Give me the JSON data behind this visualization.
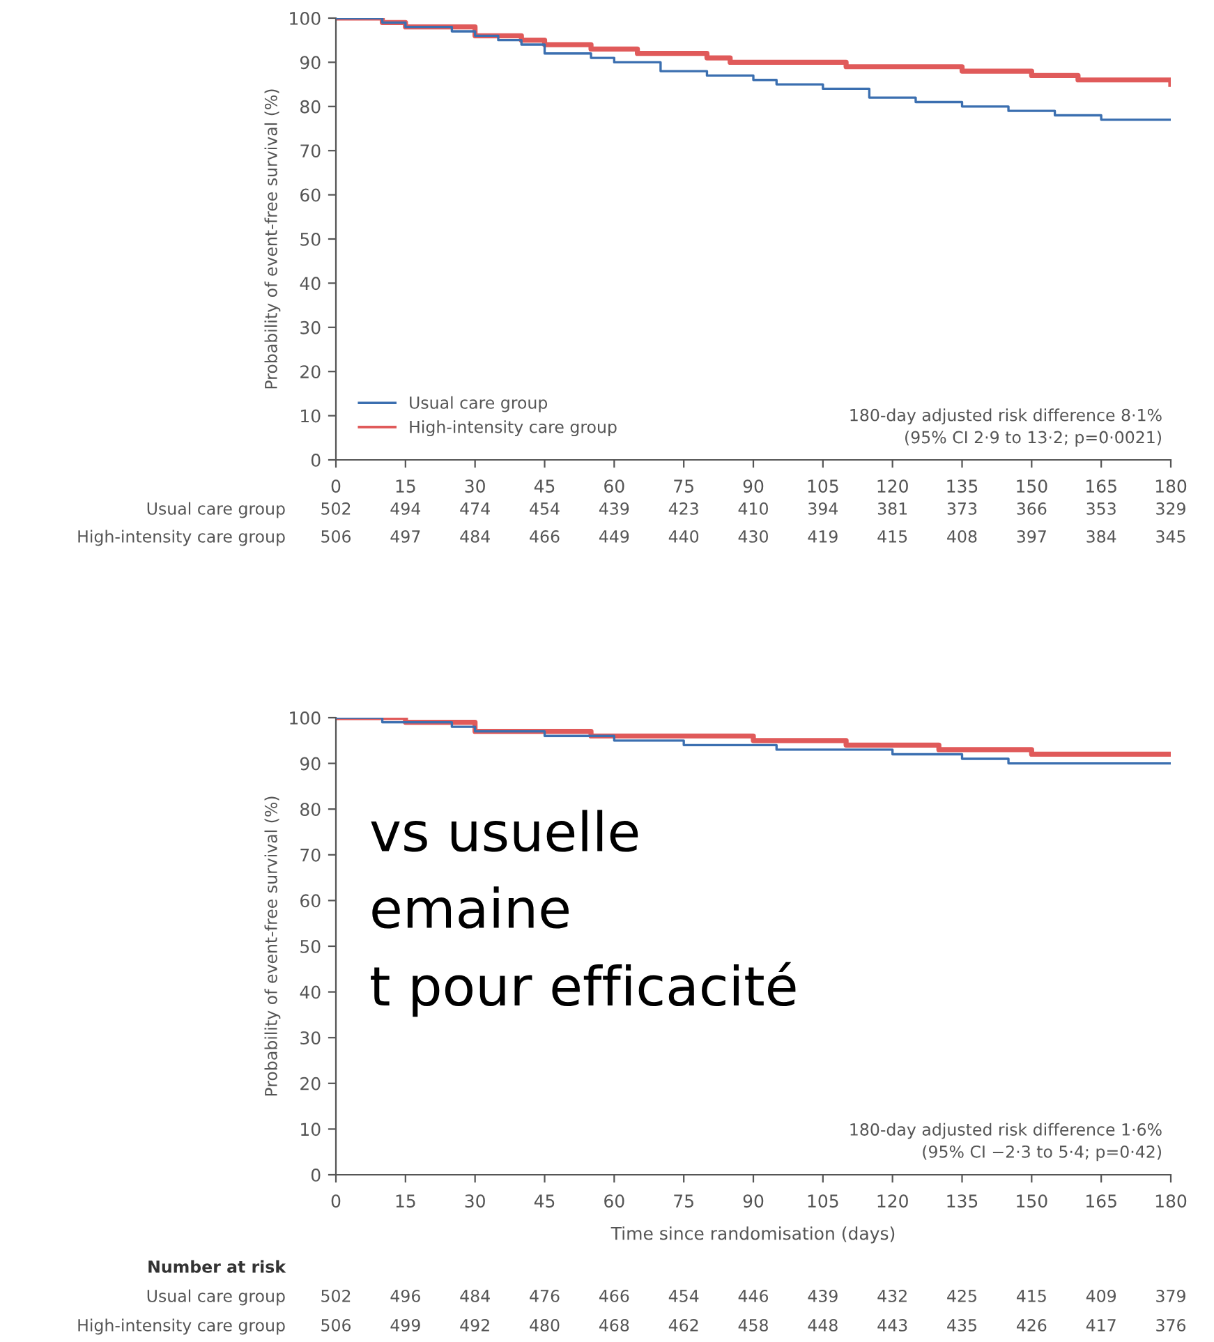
{
  "chart_data": [
    {
      "type": "step",
      "ylabel": "Probability of event-free survival (%)",
      "xlim": [
        0,
        180
      ],
      "xticks": [
        0,
        15,
        30,
        45,
        60,
        75,
        90,
        105,
        120,
        135,
        150,
        165,
        180
      ],
      "ylim": [
        0,
        100
      ],
      "yticks": [
        0,
        10,
        20,
        30,
        40,
        50,
        60,
        70,
        80,
        90,
        100
      ],
      "legend": "bottom left",
      "grid": false,
      "series": [
        {
          "name": "Usual care group",
          "color": "#3b6fb0",
          "x": [
            0,
            10,
            15,
            25,
            30,
            35,
            40,
            45,
            55,
            60,
            70,
            80,
            90,
            95,
            105,
            115,
            125,
            135,
            145,
            155,
            165,
            180
          ],
          "values": [
            100,
            99,
            98,
            97,
            96,
            95,
            94,
            92,
            91,
            90,
            88,
            87,
            86,
            85,
            84,
            82,
            81,
            80,
            79,
            78,
            77,
            77
          ]
        },
        {
          "name": "High-intensity care group",
          "color": "#e05a5a",
          "x": [
            0,
            10,
            15,
            30,
            40,
            45,
            55,
            65,
            80,
            85,
            110,
            135,
            150,
            160,
            180
          ],
          "values": [
            100,
            99,
            98,
            96,
            95,
            94,
            93,
            92,
            91,
            90,
            89,
            88,
            87,
            86,
            85
          ]
        }
      ],
      "annotations": [
        "180-day adjusted risk difference 8·1%\n(95% CI 2·9 to 13·2; p=0·0021)",
        "Usual care group",
        "502 494 474 454 439 423 410 394 381 373 366 353 329",
        "High-intensity care group",
        "506 497 484 466 449 440 430 419 415 408 397 384 345",
        "vs usuelle",
        "emaine",
        "t pour efficacité"
      ]
    },
    {
      "type": "step",
      "xlabel": "Time since randomisation (days)",
      "ylabel": "Probability of event-free survival (%)",
      "xlim": [
        0,
        180
      ],
      "xticks": [
        0,
        15,
        30,
        45,
        60,
        75,
        90,
        105,
        120,
        135,
        150,
        165,
        180
      ],
      "ylim": [
        0,
        100
      ],
      "yticks": [
        0,
        10,
        20,
        30,
        40,
        50,
        60,
        70,
        80,
        90,
        100
      ],
      "grid": false,
      "series": [
        {
          "color": "#3b6fb0",
          "x": [
            0,
            10,
            25,
            30,
            45,
            60,
            75,
            95,
            120,
            135,
            145,
            180
          ],
          "values": [
            100,
            99,
            98,
            97,
            96,
            95,
            94,
            93,
            92,
            91,
            90,
            90
          ]
        },
        {
          "color": "#e05a5a",
          "x": [
            0,
            15,
            30,
            55,
            90,
            110,
            130,
            150,
            180
          ],
          "values": [
            100,
            99,
            97,
            96,
            95,
            94,
            93,
            92,
            92
          ]
        }
      ],
      "annotations": [
        "180-day adjusted risk difference 1·6%\n(95% CI −2·3 to 5·4; p=0·42)",
        "Number at risk",
        "Usual care group",
        "502 496 484 476 466 454 446 439 432 425 415 409 379",
        "High-intensity care group",
        "506 499 492 480 468 462 458 448 443 435 426 417 376"
      ]
    }
  ]
}
